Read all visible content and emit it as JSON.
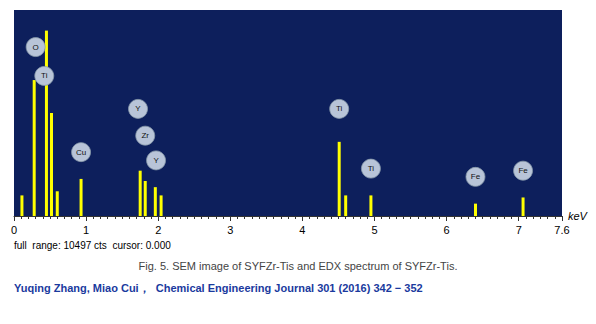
{
  "chart_data": {
    "type": "bar",
    "title": "Fig. 5. SEM image of SYFZr-Tis and EDX spectrum of SYFZr-Tis.",
    "subtitle": "Yuqing Zhang, Miao Cui，  Chemical Engineering Journal 301 (2016) 342 − 352",
    "notes": [
      "full  range: 10497 cts  cursor: 0.000"
    ],
    "xlabel": "keV",
    "x": [
      0.11,
      0.28,
      0.45,
      0.52,
      0.6,
      0.93,
      1.75,
      1.82,
      1.96,
      2.04,
      4.51,
      4.6,
      4.95,
      6.4,
      7.06
    ],
    "values": [
      0.1,
      0.66,
      0.9,
      0.5,
      0.12,
      0.18,
      0.22,
      0.17,
      0.14,
      0.1,
      0.36,
      0.1,
      0.1,
      0.06,
      0.09
    ],
    "color": "#ffff00",
    "xlim": [
      0,
      7.6
    ],
    "xticks": [
      0,
      1,
      2,
      3,
      4,
      5,
      6,
      7
    ],
    "ylim": [
      0,
      1.0
    ],
    "tick_labels": "x",
    "grid": false,
    "annotations": [
      {
        "text": "O",
        "x": 0.3,
        "y": 0.82
      },
      {
        "text": "Ti",
        "x": 0.42,
        "y": 0.68
      },
      {
        "text": "Cu",
        "x": 0.93,
        "y": 0.31
      },
      {
        "text": "Y",
        "x": 1.72,
        "y": 0.52
      },
      {
        "text": "Zr",
        "x": 1.82,
        "y": 0.39
      },
      {
        "text": "Y",
        "x": 1.97,
        "y": 0.27
      },
      {
        "text": "Ti",
        "x": 4.51,
        "y": 0.52
      },
      {
        "text": "Ti",
        "x": 4.95,
        "y": 0.23
      },
      {
        "text": "Fe",
        "x": 6.4,
        "y": 0.19
      },
      {
        "text": "Fe",
        "x": 7.06,
        "y": 0.22
      }
    ]
  }
}
